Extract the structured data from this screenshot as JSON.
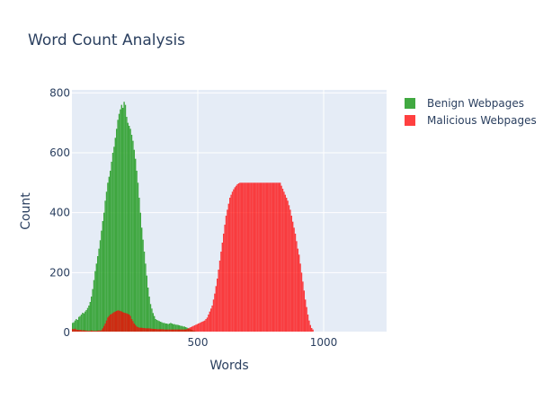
{
  "chart_data": {
    "type": "histogram",
    "title": "Word Count Analysis",
    "xlabel": "Words",
    "ylabel": "Count",
    "xlim": [
      0,
      1250
    ],
    "ylim": [
      0,
      810
    ],
    "x_ticks": [
      500,
      1000
    ],
    "y_ticks": [
      0,
      200,
      400,
      600,
      800
    ],
    "bin_width": 5,
    "legend_position": "top-right",
    "series": [
      {
        "name": "Benign Webpages",
        "color": "#2ca02c",
        "opacity": 0.9,
        "start": 0,
        "values": [
          32,
          34,
          40,
          45,
          42,
          52,
          55,
          60,
          66,
          64,
          70,
          75,
          82,
          90,
          102,
          120,
          145,
          175,
          205,
          230,
          255,
          280,
          308,
          340,
          372,
          400,
          440,
          470,
          500,
          520,
          540,
          570,
          600,
          620,
          650,
          680,
          710,
          730,
          745,
          760,
          750,
          770,
          760,
          720,
          700,
          690,
          680,
          660,
          640,
          610,
          580,
          540,
          500,
          450,
          400,
          350,
          310,
          270,
          230,
          190,
          150,
          120,
          95,
          80,
          65,
          55,
          45,
          42,
          40,
          38,
          36,
          34,
          32,
          32,
          30,
          30,
          28,
          30,
          32,
          30,
          28,
          28,
          26,
          26,
          25,
          24,
          22,
          22,
          20,
          20,
          18,
          16,
          14,
          12,
          10,
          8,
          6,
          5,
          4,
          3,
          2,
          2,
          1,
          1,
          0
        ]
      },
      {
        "name": "Malicious Webpages",
        "color": "#ff0000",
        "opacity": 0.75,
        "start": 0,
        "values": [
          12,
          11,
          13,
          10,
          9,
          8,
          9,
          8,
          7,
          8,
          6,
          7,
          5,
          6,
          5,
          7,
          6,
          5,
          6,
          5,
          6,
          7,
          6,
          8,
          14,
          22,
          30,
          40,
          50,
          55,
          60,
          62,
          65,
          68,
          70,
          72,
          74,
          73,
          72,
          70,
          68,
          66,
          65,
          64,
          62,
          60,
          55,
          45,
          38,
          30,
          25,
          20,
          18,
          16,
          16,
          16,
          15,
          15,
          14,
          14,
          14,
          14,
          13,
          13,
          12,
          12,
          12,
          11,
          11,
          11,
          11,
          11,
          11,
          10,
          10,
          10,
          10,
          10,
          10,
          10,
          10,
          10,
          10,
          10,
          10,
          10,
          10,
          10,
          10,
          10,
          10,
          12,
          14,
          16,
          18,
          20,
          22,
          24,
          26,
          28,
          30,
          32,
          34,
          36,
          38,
          40,
          45,
          50,
          60,
          70,
          80,
          90,
          110,
          130,
          155,
          180,
          210,
          240,
          270,
          300,
          330,
          360,
          390,
          410,
          430,
          450,
          460,
          470,
          478,
          485,
          490,
          495,
          498,
          500,
          500,
          500,
          500,
          500,
          500,
          500,
          500,
          500,
          500,
          500,
          500,
          500,
          500,
          500,
          500,
          500,
          500,
          500,
          500,
          500,
          500,
          500,
          500,
          500,
          500,
          500,
          500,
          500,
          500,
          500,
          500,
          500,
          490,
          480,
          470,
          460,
          450,
          440,
          425,
          410,
          390,
          370,
          350,
          330,
          305,
          280,
          260,
          230,
          200,
          170,
          140,
          110,
          85,
          60,
          40,
          25,
          15,
          10
        ]
      }
    ]
  }
}
